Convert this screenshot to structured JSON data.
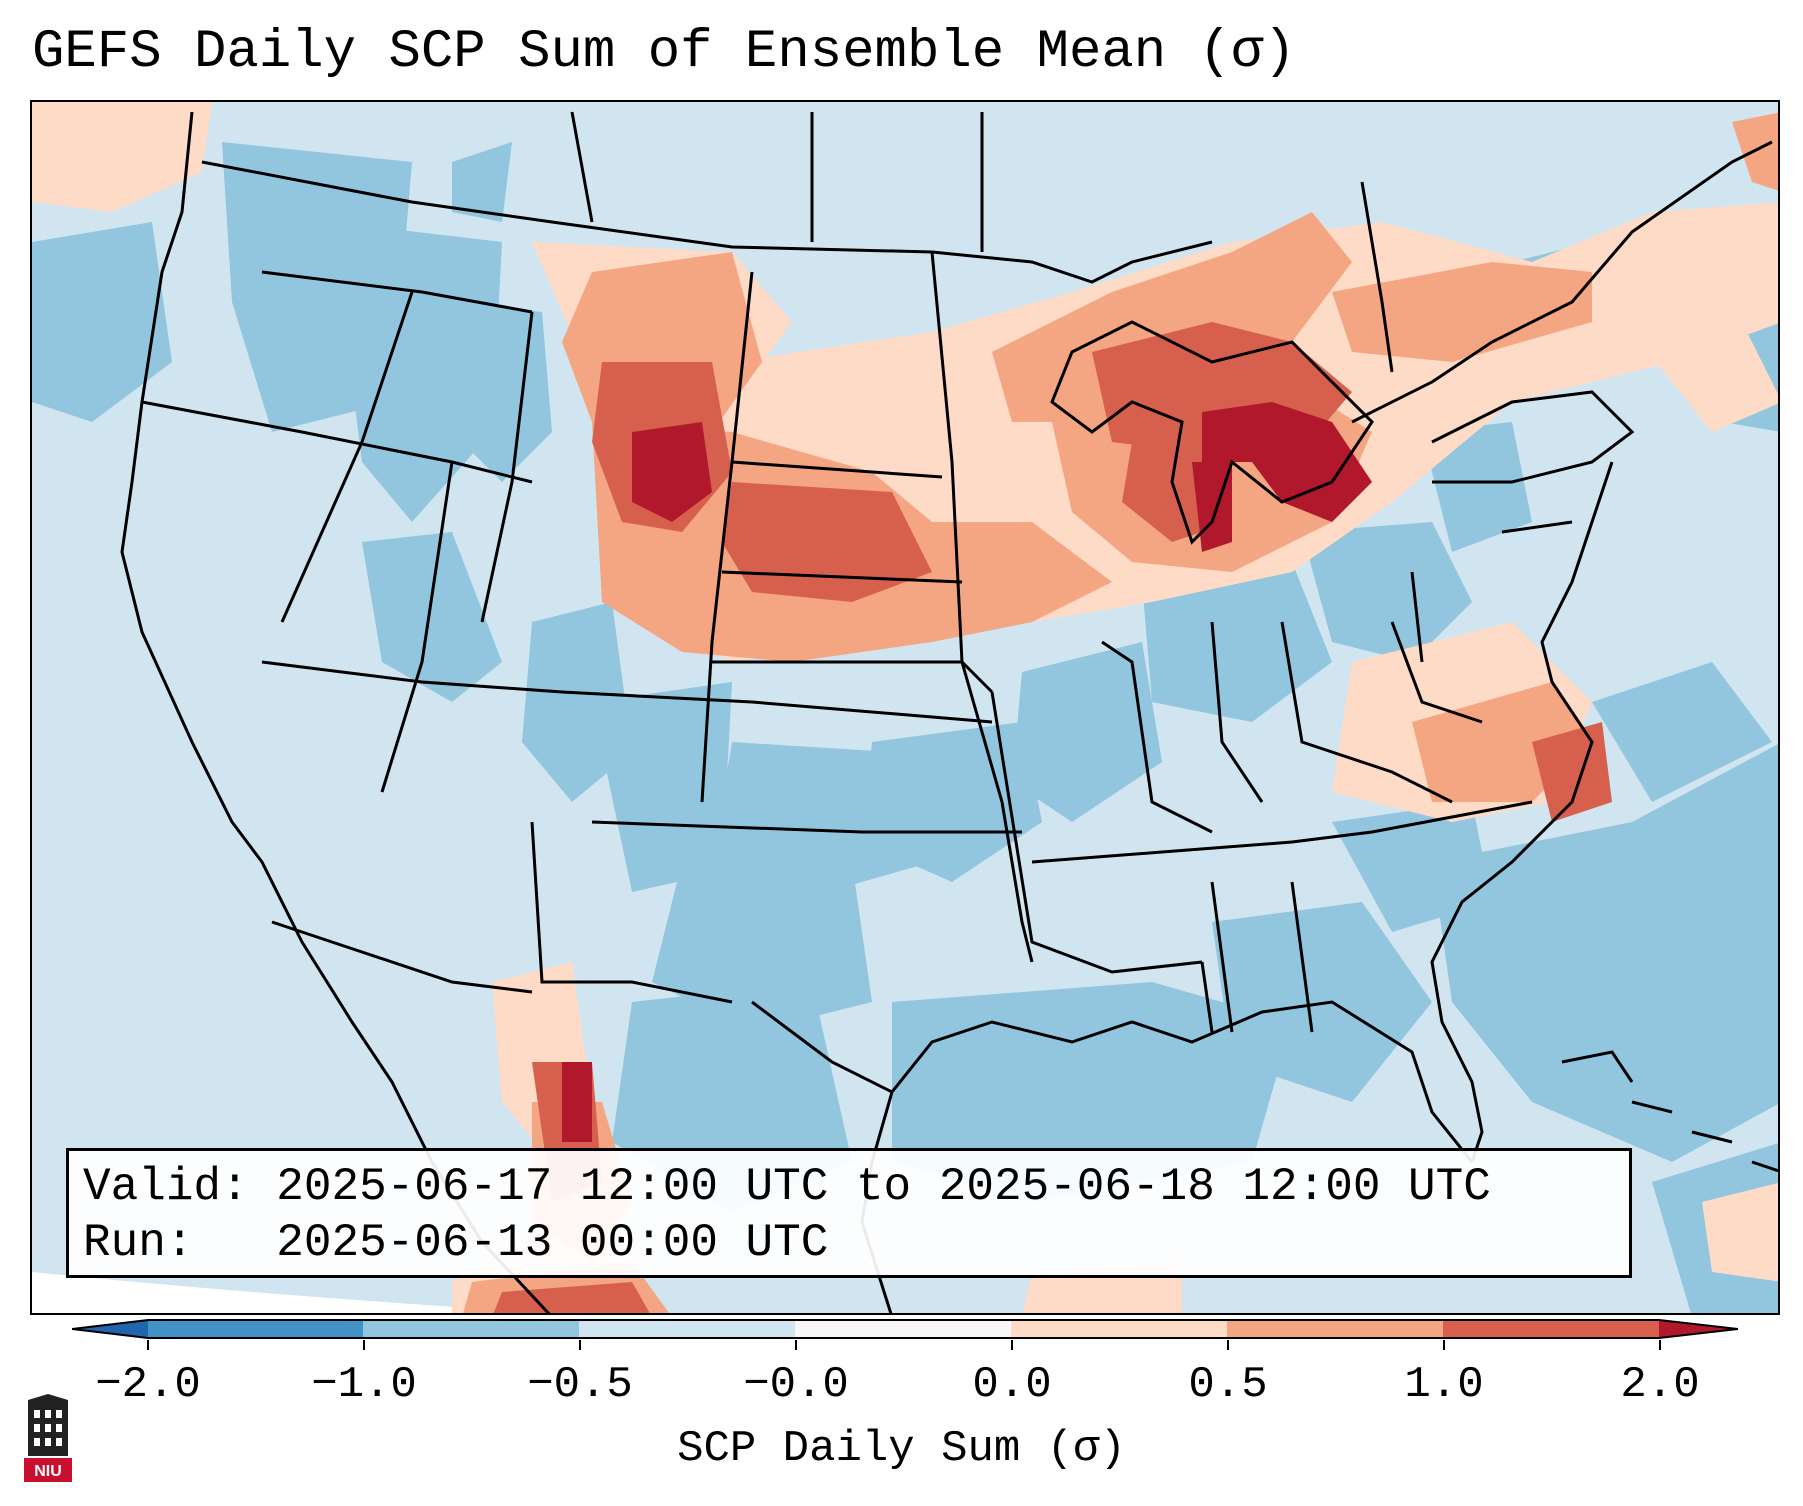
{
  "title": "GEFS Daily SCP Sum of Ensemble Mean (σ)",
  "info": {
    "valid_label": "Valid:",
    "valid_value": "2025-06-17 12:00 UTC to 2025-06-18 12:00 UTC",
    "run_label": "Run:",
    "run_value": "2025-06-13 00:00 UTC"
  },
  "colorbar": {
    "label": "SCP Daily Sum (σ)",
    "ticks": [
      "−2.0",
      "−1.0",
      "−0.5",
      "−0.0",
      "0.0",
      "0.5",
      "1.0",
      "2.0"
    ],
    "colors": [
      "#4292c6",
      "#92c5de",
      "#d1e5f0",
      "#fddbc7",
      "#f4a582",
      "#d6604d",
      "#b2182b"
    ],
    "extend_low_color": "#2166ac",
    "extend_high_color": "#b2182b"
  },
  "map": {
    "region": "Contiguous United States",
    "background_color": "#d1e5f0",
    "ocean_color": "#92c5de",
    "logo_text": "NIU"
  }
}
